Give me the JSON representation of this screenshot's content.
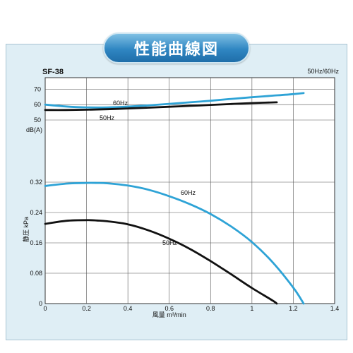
{
  "title": "性能曲線図",
  "model": "SF-38",
  "frequency_note": "50Hz/60Hz",
  "colors": {
    "hz60": "#2ea3d6",
    "hz50": "#111111",
    "grid": "#555555",
    "frame": "#dfeef5"
  },
  "chart_data": [
    {
      "type": "line",
      "ylabel": "dB(A)",
      "yticks": [
        50,
        60,
        70
      ],
      "ylim": [
        50,
        72
      ],
      "xlim": [
        0,
        1.4
      ],
      "series": [
        {
          "name": "60Hz",
          "x": [
            0,
            0.1,
            0.2,
            0.3,
            0.4,
            0.5,
            0.6,
            0.7,
            0.8,
            0.9,
            1.0,
            1.1,
            1.2,
            1.25
          ],
          "values": [
            60,
            58.8,
            58.2,
            58.2,
            58.7,
            59.5,
            60.5,
            61.5,
            62.5,
            63.7,
            64.8,
            65.8,
            66.8,
            67.5
          ]
        },
        {
          "name": "50Hz",
          "x": [
            0,
            0.1,
            0.2,
            0.3,
            0.4,
            0.5,
            0.6,
            0.7,
            0.8,
            0.9,
            1.0,
            1.12
          ],
          "values": [
            56.5,
            56.5,
            56.7,
            57.0,
            57.5,
            58.0,
            58.6,
            59.2,
            59.8,
            60.4,
            61.0,
            61.5
          ]
        }
      ]
    },
    {
      "type": "line",
      "xlabel": "風量 m³/min",
      "ylabel": "静圧 kPa",
      "xticks": [
        0,
        0.2,
        0.4,
        0.6,
        0.8,
        1.0,
        1.2,
        1.4
      ],
      "yticks": [
        0,
        0.08,
        0.16,
        0.24,
        0.32
      ],
      "ylim": [
        0,
        0.32
      ],
      "xlim": [
        0,
        1.4
      ],
      "series": [
        {
          "name": "60Hz",
          "x": [
            0,
            0.1,
            0.2,
            0.25,
            0.3,
            0.4,
            0.5,
            0.6,
            0.7,
            0.8,
            0.9,
            1.0,
            1.1,
            1.2,
            1.25
          ],
          "values": [
            0.31,
            0.316,
            0.318,
            0.318,
            0.317,
            0.311,
            0.3,
            0.283,
            0.262,
            0.236,
            0.203,
            0.162,
            0.109,
            0.042,
            0.0
          ]
        },
        {
          "name": "50Hz",
          "x": [
            0,
            0.1,
            0.2,
            0.25,
            0.3,
            0.4,
            0.5,
            0.6,
            0.7,
            0.8,
            0.9,
            1.0,
            1.1,
            1.12
          ],
          "values": [
            0.21,
            0.218,
            0.22,
            0.219,
            0.217,
            0.209,
            0.193,
            0.171,
            0.144,
            0.112,
            0.077,
            0.041,
            0.008,
            0.0
          ]
        }
      ]
    }
  ]
}
